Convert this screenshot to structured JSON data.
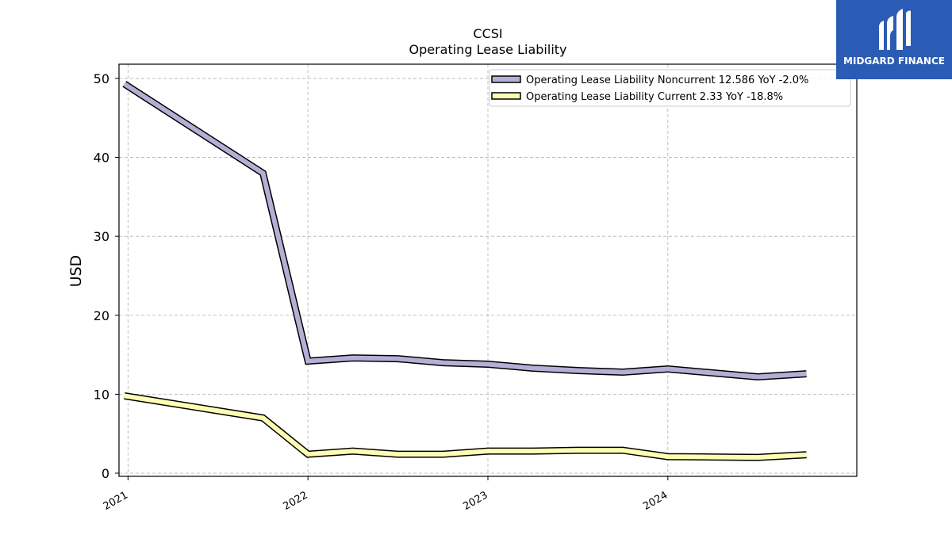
{
  "chart_data": {
    "type": "line",
    "title": "CCSI",
    "subtitle": "Operating Lease Liability",
    "xlabel": "",
    "ylabel": "USD",
    "ylim": [
      -0.4,
      51.8
    ],
    "xlim": [
      2020.95,
      2025.05
    ],
    "yticks": [
      0,
      10,
      20,
      30,
      40,
      50
    ],
    "xticks": [
      {
        "value": 2021.0,
        "label": "2021"
      },
      {
        "value": 2022.0,
        "label": "2022"
      },
      {
        "value": 2023.0,
        "label": "2023"
      },
      {
        "value": 2024.0,
        "label": "2024"
      }
    ],
    "grid": true,
    "legend_position": "upper right",
    "series": [
      {
        "name": "Operating Lease Liability Noncurrent  12.586 YoY -2.0%",
        "color": "#b3b0d6",
        "x": [
          2020.98,
          2021.75,
          2022.0,
          2022.25,
          2022.5,
          2022.75,
          2023.0,
          2023.25,
          2023.5,
          2023.75,
          2024.0,
          2024.25,
          2024.5,
          2024.77
        ],
        "y": [
          49.3,
          38.0,
          14.2,
          14.6,
          14.5,
          14.0,
          13.8,
          13.3,
          13.0,
          12.8,
          13.2,
          12.7,
          12.2,
          12.586
        ]
      },
      {
        "name": "Operating Lease Liability Current  2.33 YoY -18.8%",
        "color": "#fdfdb3",
        "x": [
          2020.98,
          2021.75,
          2022.0,
          2022.25,
          2022.5,
          2022.75,
          2023.0,
          2023.25,
          2023.5,
          2023.75,
          2024.0,
          2024.25,
          2024.5,
          2024.77
        ],
        "y": [
          9.8,
          7.0,
          2.4,
          2.8,
          2.4,
          2.4,
          2.8,
          2.8,
          2.9,
          2.9,
          2.1,
          2.05,
          2.0,
          2.33
        ]
      }
    ]
  },
  "logo": {
    "text": "MIDGARD FINANCE",
    "color": "#2a5bb5"
  }
}
